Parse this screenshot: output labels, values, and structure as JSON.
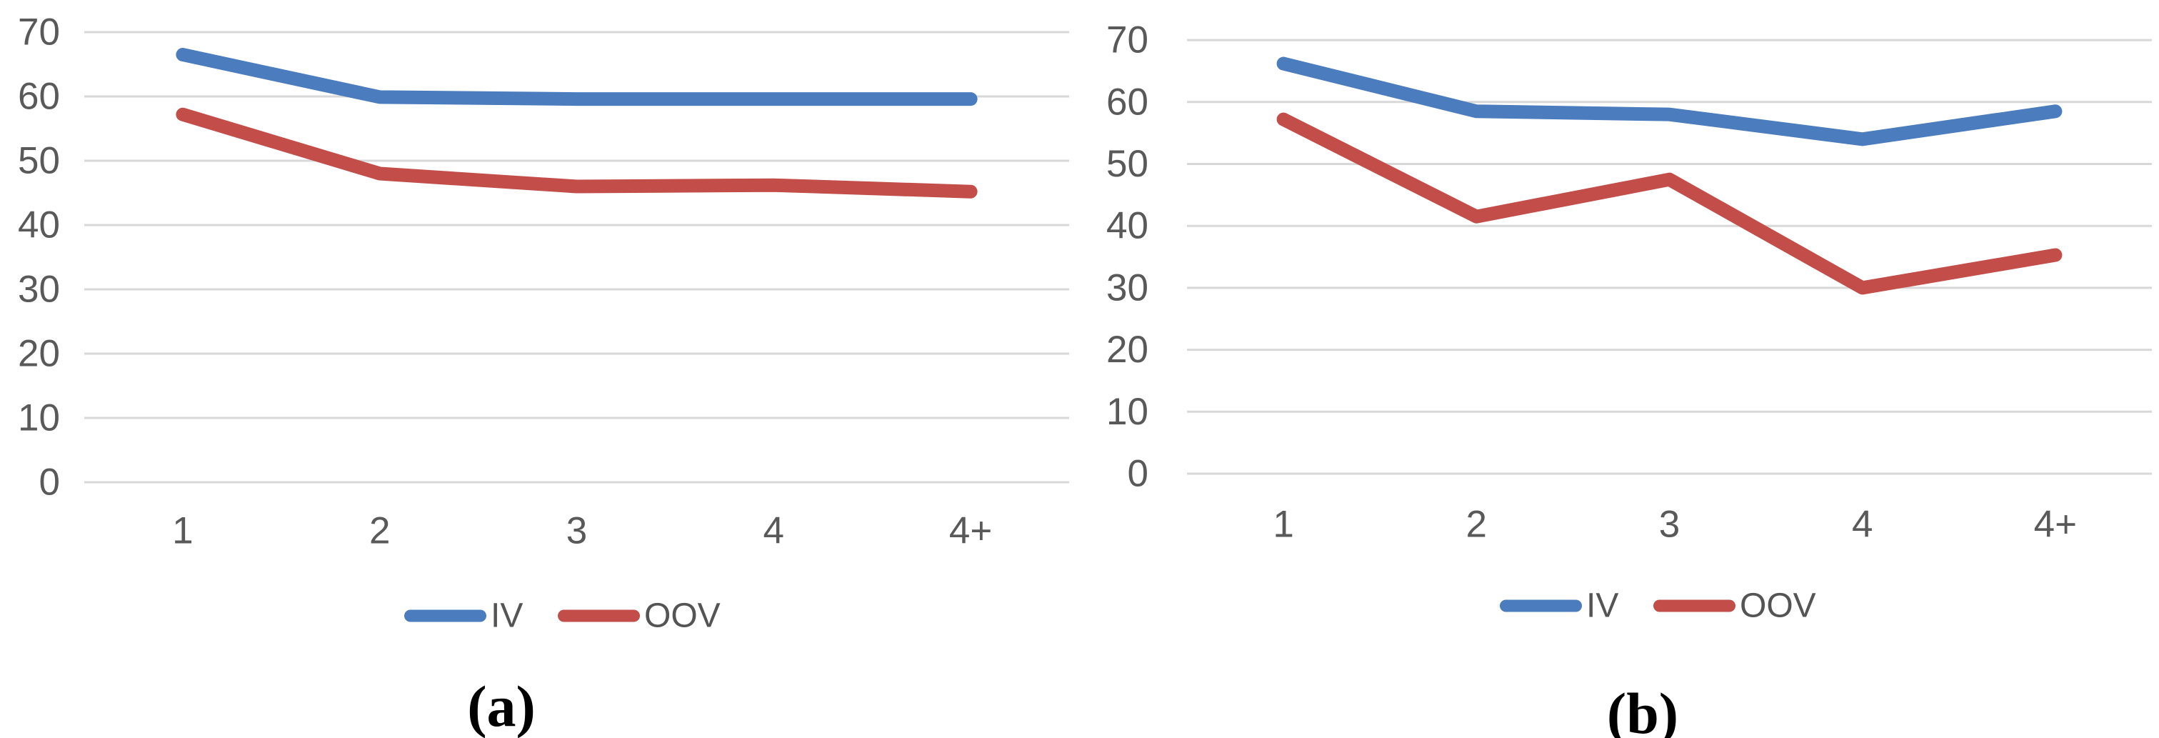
{
  "colors": {
    "iv_blue": "#4A7CBE",
    "oov_red": "#C24D49",
    "gridline_gray": "#D8D8D8",
    "tick_gray": "#595959",
    "caption_black": "#000000"
  },
  "chart_data": [
    {
      "type": "line",
      "title": "",
      "caption": "(a)",
      "categories": [
        "1",
        "2",
        "3",
        "4",
        "4+"
      ],
      "y_ticks": [
        "0",
        "10",
        "20",
        "30",
        "40",
        "50",
        "60",
        "70"
      ],
      "ylim": [
        0,
        70
      ],
      "grid": true,
      "legend_position": "bottom",
      "series": [
        {
          "name": "IV",
          "color": "#4A7CBE",
          "values": [
            66.5,
            59.9,
            59.6,
            59.6,
            59.6
          ]
        },
        {
          "name": "OOV",
          "color": "#C24D49",
          "values": [
            57.2,
            48.0,
            46.0,
            46.2,
            45.2
          ]
        }
      ]
    },
    {
      "type": "line",
      "title": "",
      "caption": "(b)",
      "categories": [
        "1",
        "2",
        "3",
        "4",
        "4+"
      ],
      "y_ticks": [
        "0",
        "10",
        "20",
        "30",
        "40",
        "50",
        "60",
        "70"
      ],
      "ylim": [
        0,
        70
      ],
      "grid": true,
      "legend_position": "bottom",
      "series": [
        {
          "name": "IV",
          "color": "#4A7CBE",
          "values": [
            66.2,
            58.5,
            58.0,
            54.0,
            58.5
          ]
        },
        {
          "name": "OOV",
          "color": "#C24D49",
          "values": [
            57.2,
            41.5,
            47.5,
            30.0,
            35.3
          ]
        }
      ]
    }
  ]
}
